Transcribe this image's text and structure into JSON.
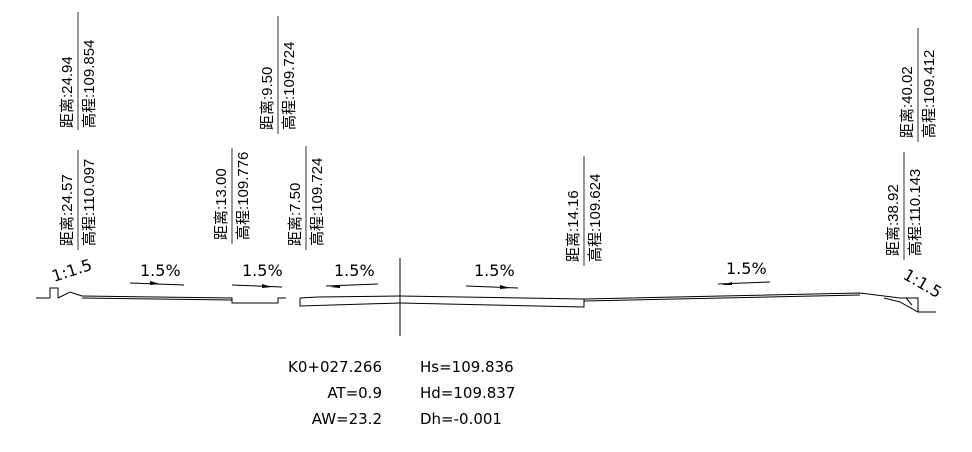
{
  "annotations": [
    {
      "distance": "距离:24.94",
      "elevation": "高程:109.854"
    },
    {
      "distance": "距离:24.57",
      "elevation": "高程:110.097"
    },
    {
      "distance": "距离:13.00",
      "elevation": "高程:109.776"
    },
    {
      "distance": "距离:9.50",
      "elevation": "高程:109.724"
    },
    {
      "distance": "距离:7.50",
      "elevation": "高程:109.724"
    },
    {
      "distance": "距离:14.16",
      "elevation": "高程:109.624"
    },
    {
      "distance": "距离:38.92",
      "elevation": "高程:110.143"
    },
    {
      "distance": "距离:40.02",
      "elevation": "高程:109.412"
    }
  ],
  "slopes": {
    "left": "1:1.5",
    "right": "1:1.5",
    "grades": [
      "1.5%",
      "1.5%",
      "1.5%",
      "1.5%",
      "1.5%"
    ]
  },
  "info": {
    "station": "K0+027.266",
    "at": "AT=0.9",
    "aw": "AW=23.2",
    "hs": "Hs=109.836",
    "hd": "Hd=109.837",
    "dh": "Dh=-0.001"
  }
}
